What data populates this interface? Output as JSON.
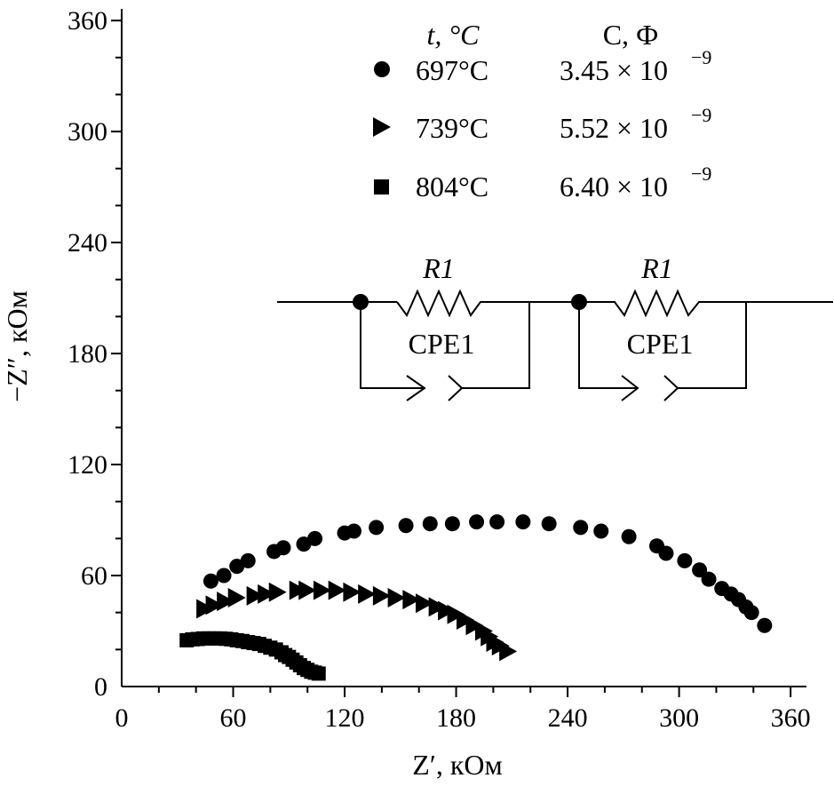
{
  "chart_data": {
    "type": "scatter",
    "xlabel": "Z′, кОм",
    "ylabel": "−Z″, кОм",
    "xlim": [
      0,
      370
    ],
    "ylim": [
      0,
      365
    ],
    "xticks": [
      0,
      60,
      120,
      180,
      240,
      300,
      360
    ],
    "yticks": [
      0,
      60,
      120,
      180,
      240,
      300,
      360
    ],
    "legend": {
      "placement": "top-right",
      "header_t": "t, °C",
      "header_c": "C, Ф",
      "c_values": [
        "3.45 × 10",
        "5.52 × 10",
        "6.40 × 10"
      ],
      "c_exponent": "−9"
    },
    "series": [
      {
        "name": "697°C",
        "marker": "circle",
        "x": [
          48,
          55,
          62,
          68,
          82,
          87,
          98,
          104,
          120,
          125,
          137,
          153,
          166,
          178,
          191,
          202,
          216,
          230,
          247,
          258,
          273,
          288,
          293,
          303,
          311,
          316,
          323,
          328,
          332,
          336,
          339,
          346
        ],
        "y": [
          57,
          60,
          65,
          68,
          73,
          75,
          77,
          80,
          83,
          84,
          86,
          87,
          88,
          88,
          89,
          89,
          89,
          88,
          86,
          84,
          81,
          76,
          72,
          68,
          63,
          58,
          53,
          50,
          47,
          43,
          40,
          33
        ]
      },
      {
        "name": "739°C",
        "marker": "triangle",
        "x": [
          45,
          50,
          56,
          62,
          72,
          78,
          84,
          95,
          100,
          108,
          116,
          124,
          132,
          140,
          148,
          156,
          163,
          170,
          175,
          180,
          185,
          190,
          195,
          198,
          201,
          204,
          208
        ],
        "y": [
          42,
          44,
          46,
          48,
          49,
          50,
          51,
          52,
          52,
          52,
          52,
          51,
          50,
          49,
          48,
          47,
          45,
          43,
          41,
          39,
          36,
          33,
          30,
          27,
          24,
          22,
          19
        ]
      },
      {
        "name": "804°C",
        "marker": "square",
        "x": [
          35,
          38,
          41,
          44,
          47,
          50,
          53,
          56,
          59,
          62,
          65,
          68,
          71,
          74,
          77,
          80,
          83,
          86,
          88,
          90,
          92,
          94,
          96,
          98,
          100,
          102,
          104,
          106
        ],
        "y": [
          25,
          25.5,
          25.7,
          26,
          26,
          26,
          26,
          25.8,
          25.5,
          25,
          24.6,
          24,
          23.5,
          23,
          22,
          21,
          20,
          18.5,
          17,
          16,
          14.5,
          13,
          11.5,
          10,
          9,
          8,
          7.5,
          7
        ]
      }
    ],
    "circuit": {
      "resistor_label": "R1",
      "cpe_label": "CPE1"
    }
  }
}
